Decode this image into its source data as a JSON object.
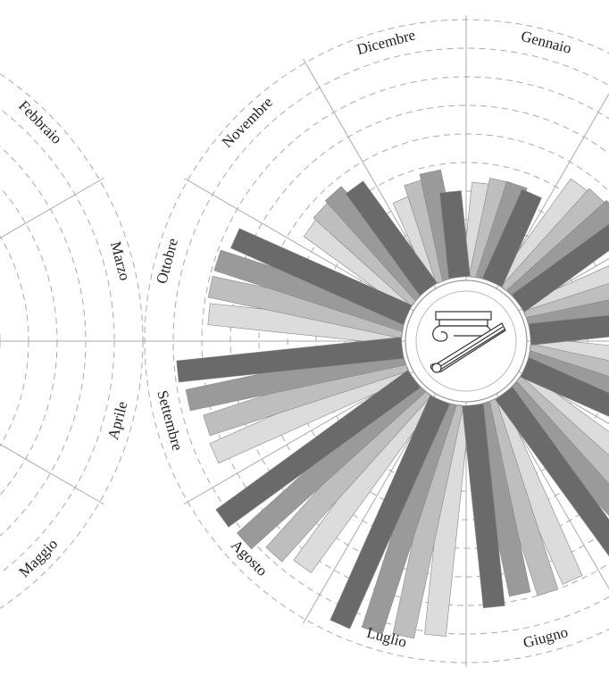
{
  "chart_data": [
    {
      "type": "polar-bar",
      "categories": [
        null,
        "Febbraio",
        "Marzo",
        "Aprile",
        "Maggio",
        null,
        null,
        null,
        null,
        null,
        null,
        null
      ],
      "ylim": [
        0,
        9
      ],
      "yticks": [
        1,
        2,
        3,
        4,
        5,
        6,
        7,
        8,
        9
      ]
    },
    {
      "type": "polar-bar",
      "categories": [
        "Gennaio",
        null,
        null,
        null,
        null,
        "Giugno",
        "Luglio",
        "Agosto",
        "Settembre",
        "Ottobre",
        "Novembre",
        "Dicembre"
      ],
      "ylim": [
        0,
        9
      ],
      "yticks": [
        1,
        2,
        3,
        4,
        5,
        6,
        7,
        8,
        9
      ],
      "series": [
        {
          "color": "#dcdcdc",
          "values": [
            3.3,
            4.5,
            5.8,
            6.8,
            7.6,
            6.9,
            8.1,
            7.5,
            7.4,
            6.8,
            4.5,
            3.2
          ]
        },
        {
          "color": "#bebebe",
          "values": [
            3.5,
            4.6,
            6.0,
            7.0,
            7.8,
            7.0,
            8.3,
            7.8,
            7.3,
            6.9,
            4.6,
            3.6
          ]
        },
        {
          "color": "#9a9a9a",
          "values": [
            3.5,
            4.7,
            6.1,
            7.2,
            8.0,
            6.8,
            8.4,
            8.2,
            7.7,
            6.9,
            4.7,
            3.8
          ]
        },
        {
          "color": "#6a6a6a",
          "values": [
            3.4,
            4.6,
            6.2,
            7.3,
            8.1,
            7.1,
            8.6,
            8.3,
            7.9,
            6.6,
            4.4,
            3.0
          ]
        }
      ]
    }
  ]
}
